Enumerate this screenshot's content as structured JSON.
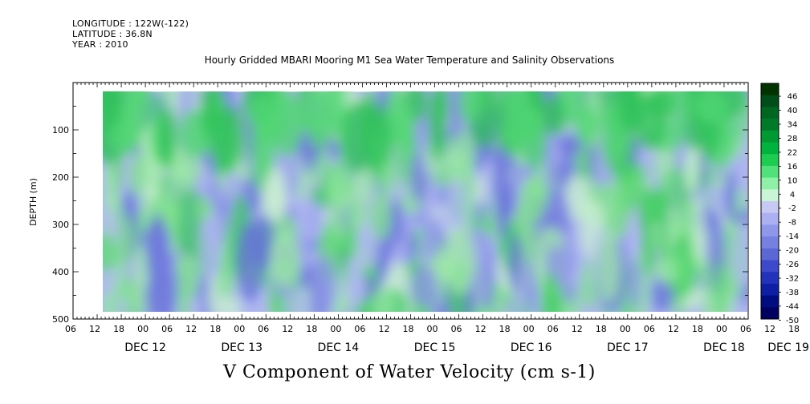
{
  "header": {
    "longitude": "LONGITUDE : 122W(-122)",
    "latitude": "LATITUDE : 36.8N",
    "year": "YEAR : 2010"
  },
  "chart_data": {
    "type": "heatmap",
    "title": "Hourly Gridded MBARI Mooring M1 Sea Water Temperature and Salinity Observations",
    "subtitle": "V Component of Water Velocity (cm s-1)",
    "ylabel": "DEPTH (m)",
    "ylim": [
      500,
      0
    ],
    "y_ticks": [
      100,
      200,
      300,
      400,
      500
    ],
    "x_hour_ticks": [
      "06",
      "12",
      "18",
      "00",
      "06",
      "12",
      "18",
      "00",
      "06",
      "12",
      "18",
      "00",
      "06",
      "12",
      "18",
      "00",
      "06",
      "12",
      "18",
      "00",
      "06",
      "12",
      "18",
      "00",
      "06",
      "12",
      "18",
      "00",
      "06",
      "12",
      "18",
      "00",
      "06"
    ],
    "x_day_labels": [
      "DEC 12",
      "DEC 13",
      "DEC 14",
      "DEC 15",
      "DEC 16",
      "DEC 17",
      "DEC 18",
      "DEC 19"
    ],
    "x_day_positions_hours": [
      18,
      42,
      66,
      90,
      114,
      138,
      162,
      178
    ],
    "x_range_hours": [
      0,
      168
    ],
    "data_x_range_hours": [
      6,
      168
    ],
    "data_y_range": [
      20,
      485
    ],
    "colorbar": {
      "levels": [
        -50,
        -44,
        -38,
        -32,
        -26,
        -20,
        -14,
        -8,
        -2,
        4,
        10,
        16,
        22,
        28,
        34,
        40,
        46
      ],
      "labels": [
        "46",
        "40",
        "34",
        "28",
        "22",
        "16",
        "10",
        "4",
        "-2",
        "-8",
        "-14",
        "-20",
        "-26",
        "-32",
        "-38",
        "-44",
        "-50"
      ],
      "colors": [
        "#003300",
        "#004d1a",
        "#006622",
        "#007a29",
        "#009933",
        "#00b33c",
        "#1fcc52",
        "#52e07a",
        "#8ff0a8",
        "#c8f5d4",
        "#c8c8f5",
        "#aab0f0",
        "#8f97ea",
        "#7580e0",
        "#5c67d6",
        "#3d4acc",
        "#2233bb",
        "#0d1fa3",
        "#000d80",
        "#000060"
      ]
    },
    "grid": false
  }
}
